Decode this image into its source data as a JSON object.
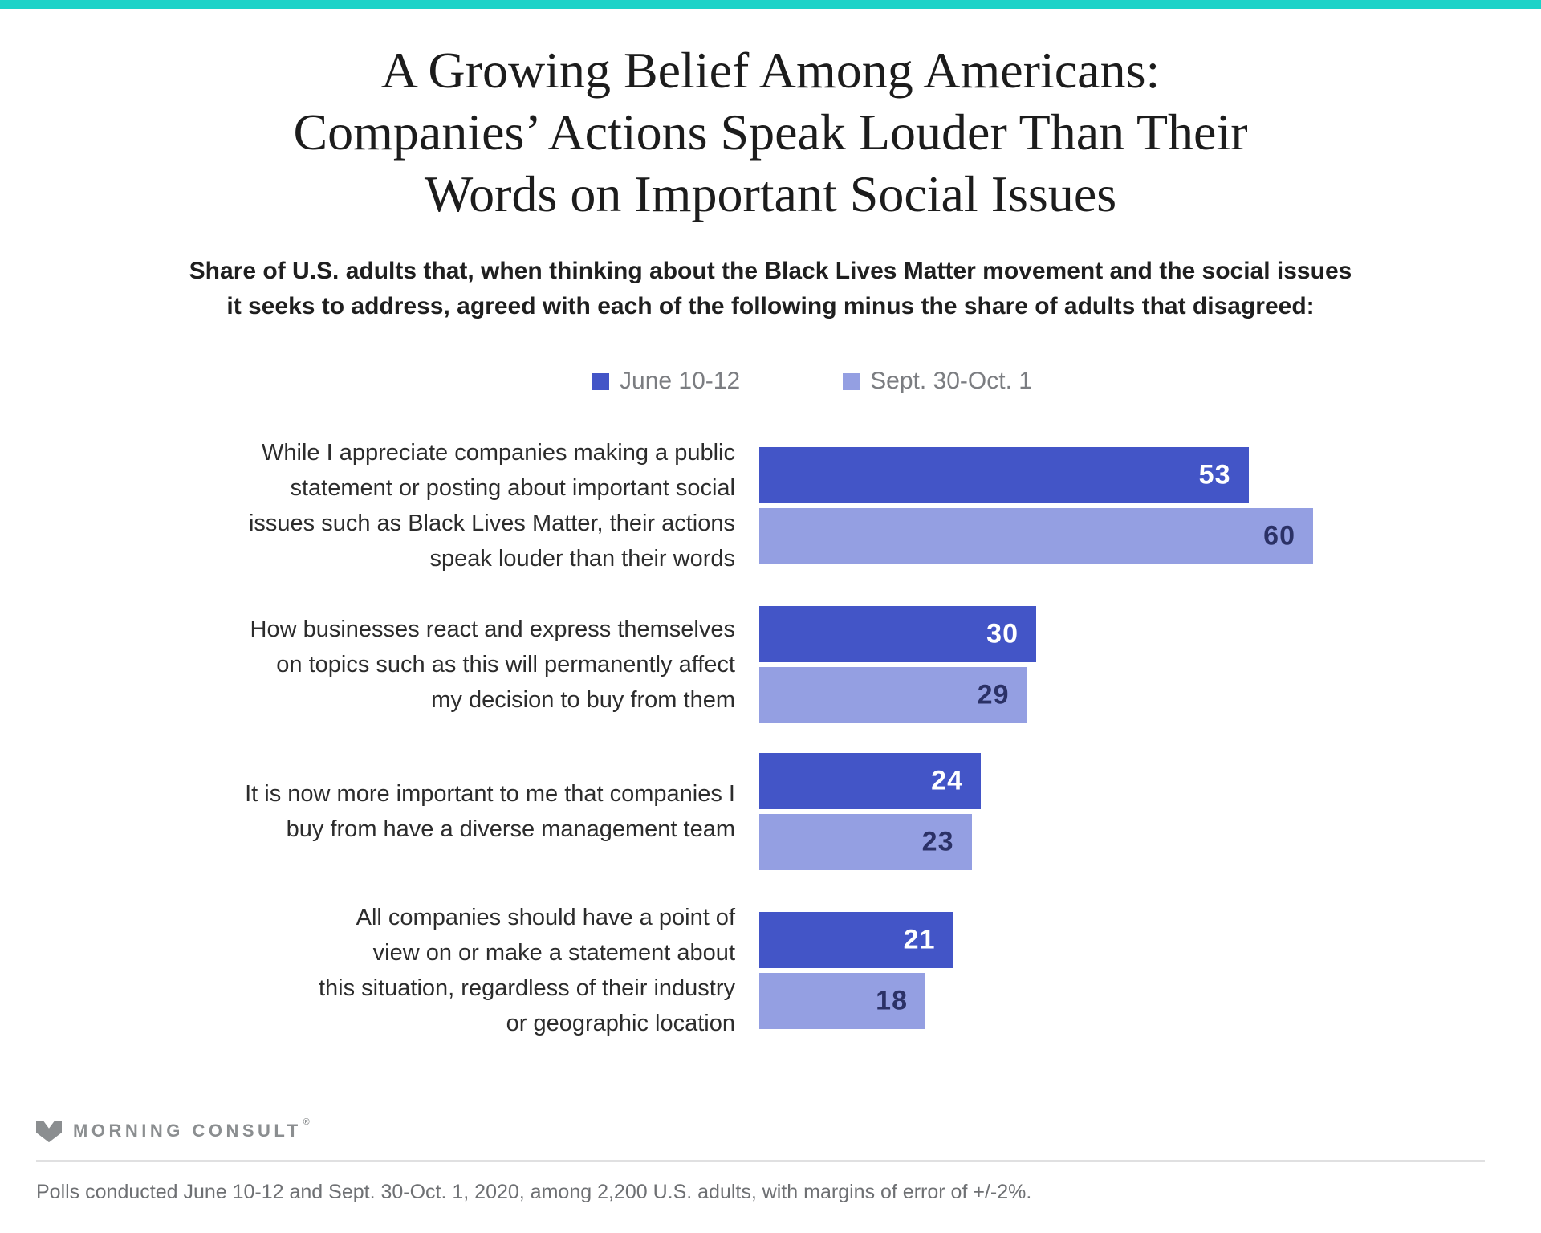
{
  "page": {
    "accent_teal": "#1cd3c8",
    "background": "#ffffff"
  },
  "title": {
    "lines": [
      "A Growing Belief Among Americans:",
      "Companies’ Actions Speak Louder Than Their",
      "Words on Important Social Issues"
    ]
  },
  "subtitle": {
    "lines": [
      "Share of U.S. adults that, when thinking about the Black Lives Matter movement and the social issues",
      "it seeks to address, agreed with each of the following minus the share of adults that disagreed:"
    ]
  },
  "chart_data": {
    "type": "bar",
    "orientation": "horizontal",
    "value_axis_max": 60,
    "grid": false,
    "legend_position": "top-center",
    "categories": [
      [
        "While I appreciate companies making a public",
        "statement or posting about important social",
        "issues such as Black Lives Matter, their actions",
        "speak louder than their words"
      ],
      [
        "How businesses react and express themselves",
        "on topics such as this will permanently affect",
        "my decision to buy from them"
      ],
      [
        "It is now more important to me that companies I",
        "buy from have a diverse management team"
      ],
      [
        "All companies should have a point of",
        "view on or make a statement about",
        "this situation, regardless of their industry",
        "or geographic location"
      ]
    ],
    "series": [
      {
        "name": "June 10-12",
        "color": "#4355c7",
        "label_color": "#ffffff",
        "values": [
          53,
          30,
          24,
          21
        ]
      },
      {
        "name": "Sept. 30-Oct. 1",
        "color": "#949fe2",
        "label_color": "#2b3166",
        "values": [
          60,
          29,
          23,
          18
        ]
      }
    ]
  },
  "footer": {
    "logo_text": "MORNING CONSULT",
    "registered_mark": "®",
    "note": "Polls conducted June 10-12 and Sept. 30-Oct. 1, 2020, among 2,200 U.S. adults, with margins of error of +/-2%."
  }
}
